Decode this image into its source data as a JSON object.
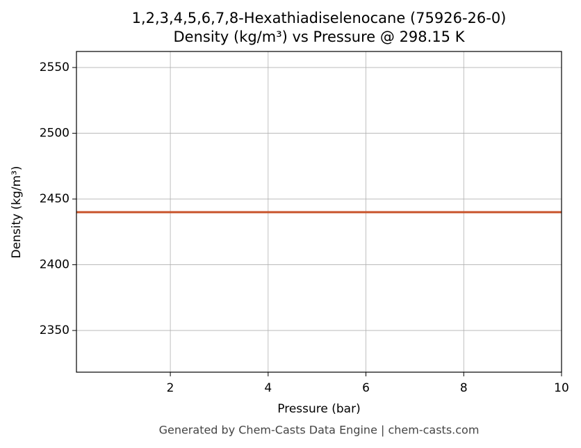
{
  "chart_data": {
    "type": "line",
    "title": "1,2,3,4,5,6,7,8-Hexathiadiselenocane (75926-26-0)",
    "subtitle": "Density (kg/m³) vs Pressure @ 298.15 K",
    "x_label": "Pressure (bar)",
    "y_label": "Density (kg/m³)",
    "footer": "Generated by Chem-Casts Data Engine | chem-casts.com",
    "x": [
      0.08,
      10
    ],
    "series": [
      {
        "name": "Density",
        "color": "#c8532a",
        "values": [
          2440,
          2440
        ]
      }
    ],
    "xlim": [
      0.08,
      10
    ],
    "xticks": [
      2,
      4,
      6,
      8,
      10
    ],
    "ylim": [
      2318.3,
      2562.2
    ],
    "yticks": [
      2350,
      2400,
      2450,
      2500,
      2550
    ],
    "grid": true
  }
}
